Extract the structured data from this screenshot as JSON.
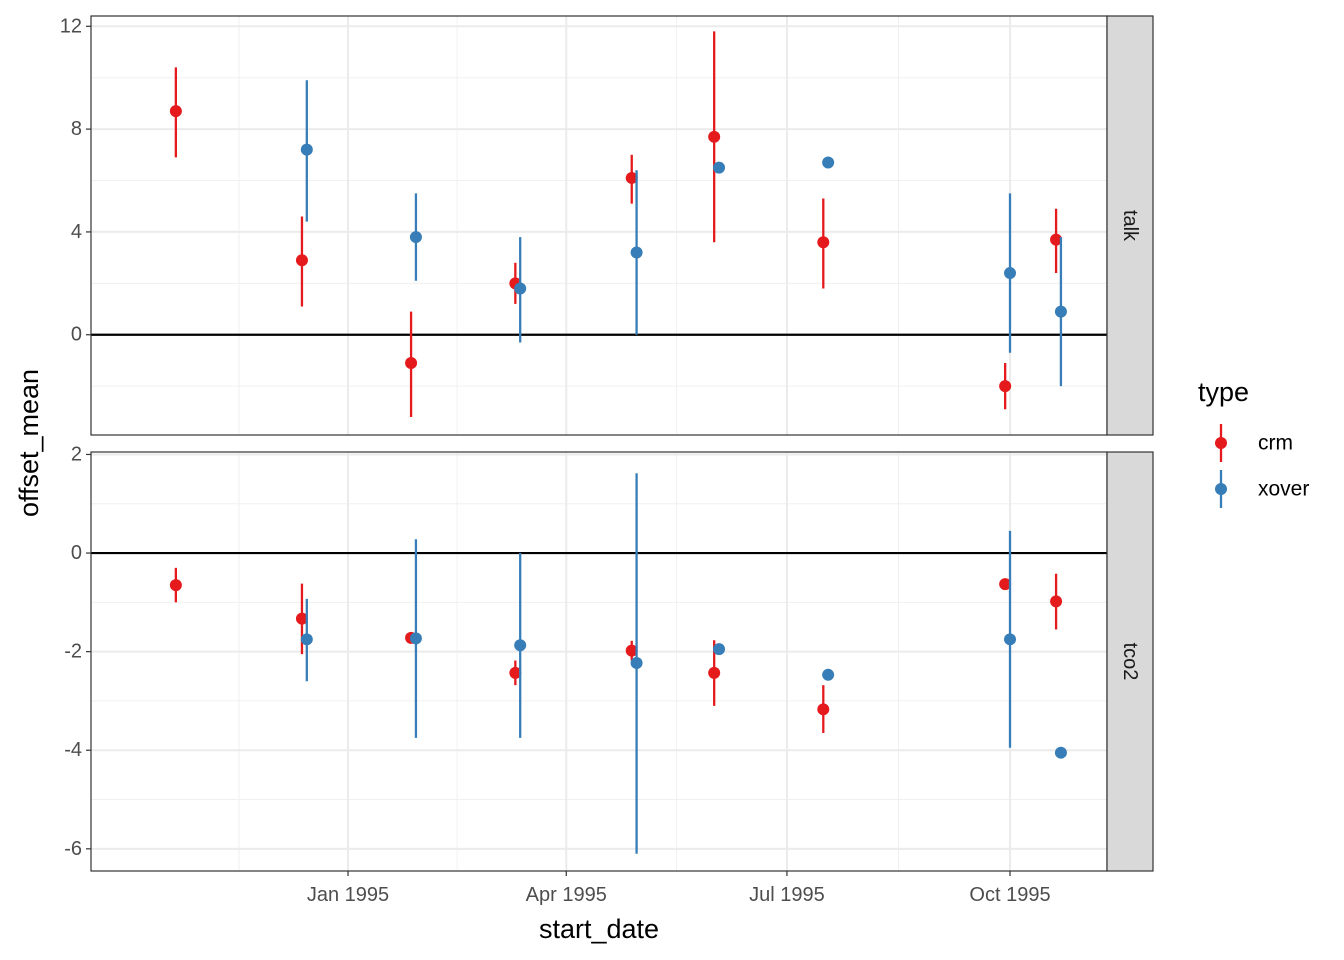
{
  "chart_data": {
    "type": "scatter",
    "subtype": "pointrange faceted",
    "xlabel": "start_date",
    "ylabel": "offset_mean",
    "x_unit": "days since 1994-10-01",
    "x_ticks": [
      {
        "label": "Jan 1995",
        "value": 92
      },
      {
        "label": "Apr 1995",
        "value": 182
      },
      {
        "label": "Jul 1995",
        "value": 273
      },
      {
        "label": "Oct 1995",
        "value": 365
      }
    ],
    "xlim": [
      -14,
      405
    ],
    "legend": {
      "title": "type",
      "position": "right",
      "entries": [
        {
          "name": "crm",
          "color": "#e41a1c"
        },
        {
          "name": "xover",
          "color": "#377eb8"
        }
      ]
    },
    "hline": 0,
    "facets": [
      {
        "name": "talk",
        "ylim": [
          -3.9,
          12.4
        ],
        "y_ticks": [
          0,
          4,
          8,
          12
        ],
        "series": [
          {
            "name": "crm",
            "points": [
              {
                "x": 21,
                "y": 8.7,
                "ymin": 6.9,
                "ymax": 10.4
              },
              {
                "x": 73,
                "y": 2.9,
                "ymin": 1.1,
                "ymax": 4.6
              },
              {
                "x": 118,
                "y": -1.1,
                "ymin": -3.2,
                "ymax": 0.9
              },
              {
                "x": 161,
                "y": 2.0,
                "ymin": 1.2,
                "ymax": 2.8
              },
              {
                "x": 209,
                "y": 6.1,
                "ymin": 5.1,
                "ymax": 7.0
              },
              {
                "x": 243,
                "y": 7.7,
                "ymin": 3.6,
                "ymax": 11.8
              },
              {
                "x": 288,
                "y": 3.6,
                "ymin": 1.8,
                "ymax": 5.3
              },
              {
                "x": 363,
                "y": -2.0,
                "ymin": -2.9,
                "ymax": -1.1
              },
              {
                "x": 384,
                "y": 3.7,
                "ymin": 2.4,
                "ymax": 4.9
              }
            ]
          },
          {
            "name": "xover",
            "points": [
              {
                "x": 75,
                "y": 7.2,
                "ymin": 4.4,
                "ymax": 9.9
              },
              {
                "x": 120,
                "y": 3.8,
                "ymin": 2.1,
                "ymax": 5.5
              },
              {
                "x": 163,
                "y": 1.8,
                "ymin": -0.3,
                "ymax": 3.8
              },
              {
                "x": 211,
                "y": 3.2,
                "ymin": 0.0,
                "ymax": 6.4
              },
              {
                "x": 245,
                "y": 6.5,
                "ymin": null,
                "ymax": null
              },
              {
                "x": 290,
                "y": 6.7,
                "ymin": null,
                "ymax": null
              },
              {
                "x": 365,
                "y": 2.4,
                "ymin": -0.7,
                "ymax": 5.5
              },
              {
                "x": 386,
                "y": 0.9,
                "ymin": -2.0,
                "ymax": 3.8
              }
            ]
          }
        ]
      },
      {
        "name": "tco2",
        "ylim": [
          -6.45,
          2.05
        ],
        "y_ticks": [
          -6,
          -4,
          -2,
          0,
          2
        ],
        "series": [
          {
            "name": "crm",
            "points": [
              {
                "x": 21,
                "y": -0.65,
                "ymin": -1.0,
                "ymax": -0.3
              },
              {
                "x": 73,
                "y": -1.33,
                "ymin": -2.05,
                "ymax": -0.62
              },
              {
                "x": 118,
                "y": -1.72,
                "ymin": null,
                "ymax": null
              },
              {
                "x": 161,
                "y": -2.43,
                "ymin": -2.68,
                "ymax": -2.18
              },
              {
                "x": 209,
                "y": -1.98,
                "ymin": -2.18,
                "ymax": -1.78
              },
              {
                "x": 243,
                "y": -2.43,
                "ymin": -3.1,
                "ymax": -1.77
              },
              {
                "x": 288,
                "y": -3.17,
                "ymin": -3.65,
                "ymax": -2.68
              },
              {
                "x": 363,
                "y": -0.63,
                "ymin": null,
                "ymax": null
              },
              {
                "x": 384,
                "y": -0.98,
                "ymin": -1.55,
                "ymax": -0.42
              }
            ]
          },
          {
            "name": "xover",
            "points": [
              {
                "x": 75,
                "y": -1.75,
                "ymin": -2.6,
                "ymax": -0.93
              },
              {
                "x": 120,
                "y": -1.73,
                "ymin": -3.75,
                "ymax": 0.28
              },
              {
                "x": 163,
                "y": -1.87,
                "ymin": -3.75,
                "ymax": 0.0
              },
              {
                "x": 211,
                "y": -2.23,
                "ymin": -6.1,
                "ymax": 1.62
              },
              {
                "x": 245,
                "y": -1.95,
                "ymin": null,
                "ymax": null
              },
              {
                "x": 290,
                "y": -2.47,
                "ymin": null,
                "ymax": null
              },
              {
                "x": 365,
                "y": -1.75,
                "ymin": -3.95,
                "ymax": 0.45
              },
              {
                "x": 386,
                "y": -4.05,
                "ymin": null,
                "ymax": null
              }
            ]
          }
        ]
      }
    ]
  }
}
